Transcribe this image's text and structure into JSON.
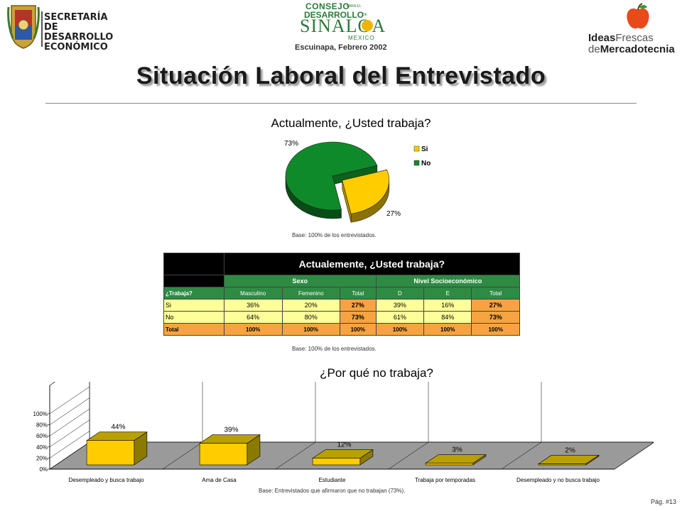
{
  "header": {
    "left_logo_text": [
      "SECRETARÍA",
      "DE DESARROLLO",
      "ECONÓMICO"
    ],
    "center_logo_text": [
      "CONSEJO",
      "PARA EL",
      "DESARROLLO",
      "DE",
      "SINALOA",
      "MEXICO"
    ],
    "right_logo_text": {
      "a": "Ideas",
      "b": "Frescas",
      "c": "de",
      "d": "Mercadotecnia"
    },
    "subtitle": "Escuinapa, Febrero 2002"
  },
  "title": "Situación Laboral del Entrevistado",
  "colors": {
    "green": "#0f8a2a",
    "yellow": "#ffcc00",
    "olive": "#8a7a00",
    "orange": "#f7a440",
    "lightyellow": "#ffff99",
    "tablegreen": "#2e8b44"
  },
  "chart_data": [
    {
      "type": "pie",
      "title": "Actualmente, ¿Usted trabaja?",
      "categories": [
        "Si",
        "No"
      ],
      "values": [
        27,
        73
      ],
      "labels": [
        "27%",
        "73%"
      ],
      "colors": [
        "#ffcc00",
        "#0f8a2a"
      ],
      "legend": "right",
      "note": "Base: 100% de los entrevistados."
    },
    {
      "type": "table",
      "title": "Actualemente, ¿Usted trabaja?",
      "group_headers": [
        "Sexo",
        "Nivel Socioeconómico"
      ],
      "row_header": "¿Trabaja?",
      "columns": [
        "Masculino",
        "Femenino",
        "Total",
        "D",
        "E",
        "Total"
      ],
      "rows": [
        {
          "label": "Si",
          "values": [
            "36%",
            "20%",
            "27%",
            "39%",
            "16%",
            "27%"
          ]
        },
        {
          "label": "No",
          "values": [
            "64%",
            "80%",
            "73%",
            "61%",
            "84%",
            "73%"
          ]
        },
        {
          "label": "Total",
          "values": [
            "100%",
            "100%",
            "100%",
            "100%",
            "100%",
            "100%"
          ]
        }
      ],
      "note": "Base: 100% de los entrevistados."
    },
    {
      "type": "bar",
      "title": "¿Por qué no trabaja?",
      "categories": [
        "Desempleado y busca trabajo",
        "Ama de Casa",
        "Estudiante",
        "Trabaja por temporadas",
        "Desempleado y no busca trabajo"
      ],
      "values": [
        44,
        39,
        12,
        3,
        2
      ],
      "labels": [
        "44%",
        "39%",
        "12%",
        "3%",
        "2%"
      ],
      "yticks": [
        "0%",
        "20%",
        "40%",
        "60%",
        "80%",
        "100%"
      ],
      "ylim": [
        0,
        100
      ],
      "grid": true,
      "note": "Base: Entrevistados que afirmaron que no trabajan (73%)."
    }
  ],
  "footer": {
    "page": "Pág. #13"
  }
}
